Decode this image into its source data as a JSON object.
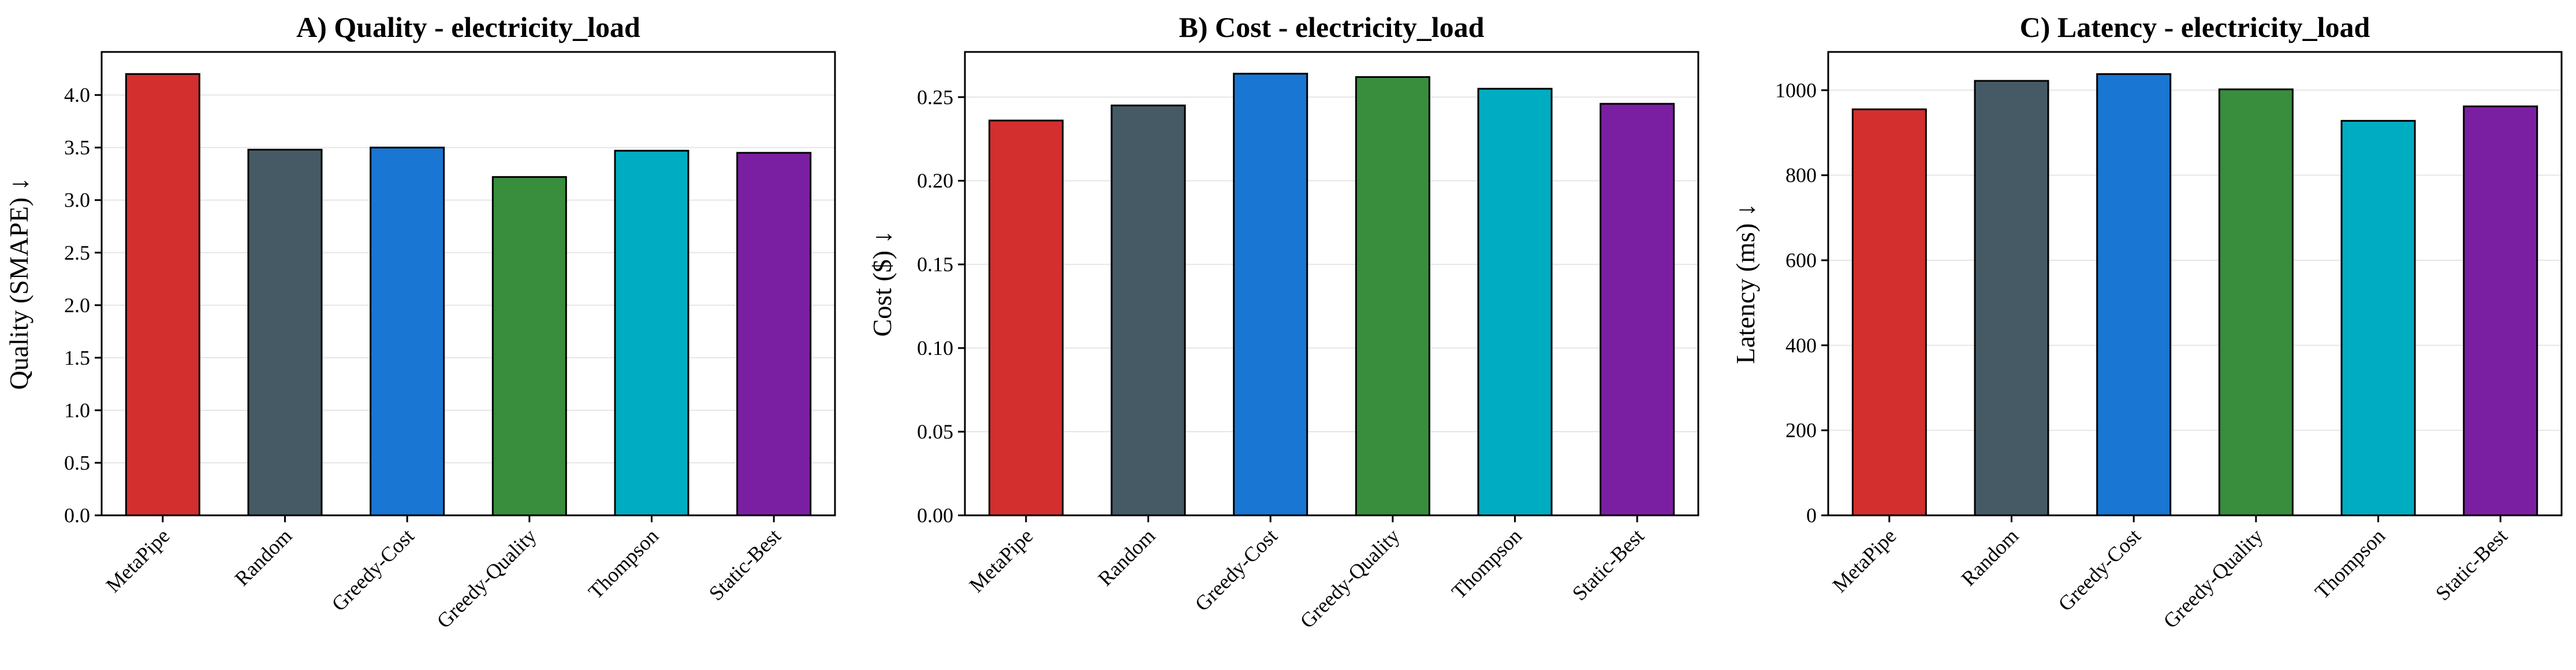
{
  "chart_data": [
    {
      "type": "bar",
      "title": "A) Quality - electricity_load",
      "xlabel": "",
      "ylabel": "Quality (SMAPE) ↓",
      "categories": [
        "MetaPipe",
        "Random",
        "Greedy-Cost",
        "Greedy-Quality",
        "Thompson",
        "Static-Best"
      ],
      "values": [
        4.2,
        3.48,
        3.5,
        3.22,
        3.47,
        3.45
      ],
      "colors": [
        "#d32f2f",
        "#455a64",
        "#1976d2",
        "#388e3c",
        "#00acc1",
        "#7b1fa2"
      ],
      "ylim": [
        0,
        4.41
      ],
      "yticks": [
        0.0,
        0.5,
        1.0,
        1.5,
        2.0,
        2.5,
        3.0,
        3.5,
        4.0
      ],
      "ytick_labels": [
        "0.0",
        "0.5",
        "1.0",
        "1.5",
        "2.0",
        "2.5",
        "3.0",
        "3.5",
        "4.0"
      ],
      "grid": "y"
    },
    {
      "type": "bar",
      "title": "B) Cost - electricity_load",
      "xlabel": "",
      "ylabel": "Cost ($) ↓",
      "categories": [
        "MetaPipe",
        "Random",
        "Greedy-Cost",
        "Greedy-Quality",
        "Thompson",
        "Static-Best"
      ],
      "values": [
        0.236,
        0.245,
        0.264,
        0.262,
        0.255,
        0.246
      ],
      "colors": [
        "#d32f2f",
        "#455a64",
        "#1976d2",
        "#388e3c",
        "#00acc1",
        "#7b1fa2"
      ],
      "ylim": [
        0,
        0.277
      ],
      "yticks": [
        0.0,
        0.05,
        0.1,
        0.15,
        0.2,
        0.25
      ],
      "ytick_labels": [
        "0.00",
        "0.05",
        "0.10",
        "0.15",
        "0.20",
        "0.25"
      ],
      "grid": "y"
    },
    {
      "type": "bar",
      "title": "C) Latency - electricity_load",
      "xlabel": "",
      "ylabel": "Latency (ms) ↓",
      "categories": [
        "MetaPipe",
        "Random",
        "Greedy-Cost",
        "Greedy-Quality",
        "Thompson",
        "Static-Best"
      ],
      "values": [
        955,
        1022,
        1038,
        1002,
        928,
        962
      ],
      "colors": [
        "#d32f2f",
        "#455a64",
        "#1976d2",
        "#388e3c",
        "#00acc1",
        "#7b1fa2"
      ],
      "ylim": [
        0,
        1090
      ],
      "yticks": [
        0,
        200,
        400,
        600,
        800,
        1000
      ],
      "ytick_labels": [
        "0",
        "200",
        "400",
        "600",
        "800",
        "1000"
      ],
      "grid": "y"
    }
  ]
}
